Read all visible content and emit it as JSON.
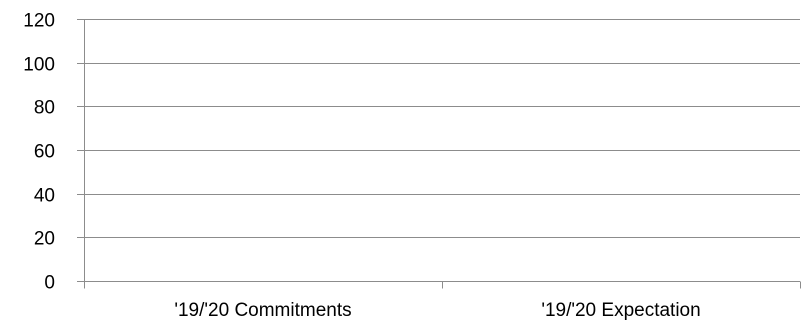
{
  "chart_data": {
    "type": "bar",
    "title": "",
    "xlabel": "",
    "ylabel": "",
    "categories": [
      "'19/'20 Commitments",
      "'19/'20 Expectation"
    ],
    "series": [
      {
        "values": [
          0,
          0
        ]
      }
    ],
    "ylim": [
      0,
      120
    ],
    "yticks": [
      0,
      20,
      40,
      60,
      80,
      100,
      120
    ],
    "grid": true,
    "legend": "none",
    "colors": {
      "gridline": "#8c8c8c",
      "axis": "#8c8c8c",
      "text": "#000000"
    }
  }
}
